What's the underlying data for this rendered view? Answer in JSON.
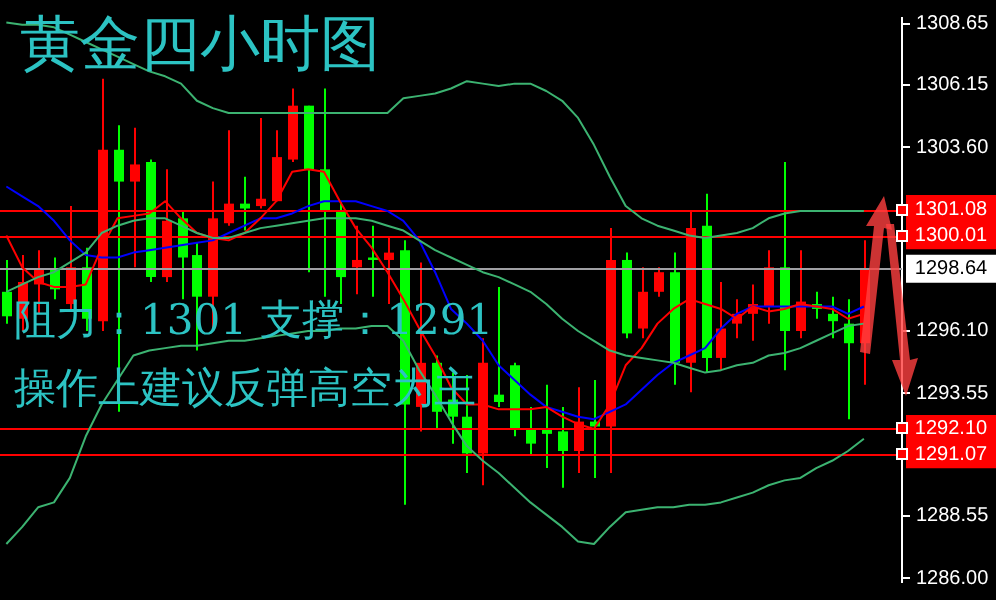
{
  "chart_data": {
    "type": "candlestick",
    "title": "黄金四小时图",
    "annotations": [
      "阻力：1301 支撑：1291",
      "操作上建议反弹高空为主"
    ],
    "categories": [
      null,
      null,
      null,
      null,
      null,
      null,
      null,
      null,
      null,
      null,
      null,
      null,
      null,
      null,
      null,
      null,
      null,
      null,
      null,
      null,
      null,
      null,
      null,
      null,
      null,
      null,
      null,
      null,
      null,
      null,
      null,
      null,
      null,
      null,
      null,
      null,
      null,
      null,
      null,
      null,
      null,
      null,
      null,
      null,
      null,
      null,
      null,
      null,
      null,
      null,
      null,
      null,
      null,
      null,
      null
    ],
    "ohlc": [
      [
        1297.7,
        1299.0,
        1296.4,
        1296.7
      ],
      [
        1296.6,
        1299.2,
        1296.1,
        1298.1
      ],
      [
        1298.0,
        1299.4,
        1296.8,
        1298.6
      ],
      [
        1298.6,
        1299.1,
        1297.4,
        1297.8
      ],
      [
        1297.2,
        1301.2,
        1297.0,
        1298.7
      ],
      [
        1298.7,
        1299.5,
        1296.1,
        1296.6
      ],
      [
        1296.5,
        1306.4,
        1296.1,
        1303.5
      ],
      [
        1303.5,
        1304.5,
        1292.8,
        1302.2
      ],
      [
        1302.2,
        1304.4,
        1298.7,
        1302.9
      ],
      [
        1303.0,
        1303.1,
        1298.1,
        1298.3
      ],
      [
        1298.3,
        1302.7,
        1298.1,
        1300.6
      ],
      [
        1300.7,
        1301.0,
        1297.4,
        1299.1
      ],
      [
        1299.2,
        1299.7,
        1295.3,
        1297.5
      ],
      [
        1297.5,
        1302.2,
        1296.2,
        1300.7
      ],
      [
        1300.5,
        1304.3,
        1300.4,
        1301.3
      ],
      [
        1301.3,
        1302.4,
        1300.2,
        1301.1
      ],
      [
        1301.2,
        1304.8,
        1301.1,
        1301.5
      ],
      [
        1301.4,
        1304.3,
        1301.4,
        1303.2
      ],
      [
        1303.1,
        1306.0,
        1303.0,
        1305.3
      ],
      [
        1305.3,
        1305.3,
        1298.5,
        1302.7
      ],
      [
        1302.7,
        1306.0,
        1297.5,
        1301.0
      ],
      [
        1301.0,
        1301.4,
        1297.2,
        1298.3
      ],
      [
        1298.7,
        1300.4,
        1297.6,
        1299.0
      ],
      [
        1299.1,
        1300.4,
        1297.5,
        1299.0
      ],
      [
        1299.0,
        1299.9,
        1297.2,
        1299.3
      ],
      [
        1299.4,
        1299.8,
        1289.0,
        1293.1
      ],
      [
        1293.0,
        1298.9,
        1292.0,
        1294.8
      ],
      [
        1294.8,
        1295.1,
        1292.1,
        1292.8
      ],
      [
        1293.3,
        1294.4,
        1291.5,
        1292.6
      ],
      [
        1292.6,
        1294.3,
        1290.3,
        1291.1
      ],
      [
        1291.1,
        1295.8,
        1289.8,
        1294.8
      ],
      [
        1293.5,
        1297.9,
        1293.0,
        1293.2
      ],
      [
        1294.7,
        1294.8,
        1291.8,
        1292.1
      ],
      [
        1292.1,
        1293.0,
        1291.0,
        1291.5
      ],
      [
        1292.1,
        1293.9,
        1290.5,
        1291.9
      ],
      [
        1292.0,
        1293.0,
        1289.7,
        1291.2
      ],
      [
        1291.2,
        1293.8,
        1290.3,
        1292.4
      ],
      [
        1292.4,
        1294.1,
        1290.1,
        1292.2
      ],
      [
        1292.2,
        1300.3,
        1290.3,
        1299.0
      ],
      [
        1299.0,
        1299.3,
        1295.8,
        1296.0
      ],
      [
        1296.2,
        1298.7,
        1295.8,
        1297.7
      ],
      [
        1297.7,
        1298.7,
        1297.5,
        1298.5
      ],
      [
        1298.5,
        1299.3,
        1293.9,
        1294.8
      ],
      [
        1294.8,
        1301.0,
        1293.6,
        1300.3
      ],
      [
        1300.4,
        1301.7,
        1294.4,
        1295.0
      ],
      [
        1295.0,
        1298.1,
        1294.5,
        1296.2
      ],
      [
        1296.4,
        1297.4,
        1295.8,
        1296.8
      ],
      [
        1296.8,
        1298.0,
        1295.7,
        1297.2
      ],
      [
        1297.1,
        1299.4,
        1296.4,
        1298.7
      ],
      [
        1298.7,
        1303.0,
        1294.5,
        1296.1
      ],
      [
        1296.1,
        1299.4,
        1295.8,
        1297.3
      ],
      [
        1297.2,
        1297.7,
        1296.6,
        1297.0
      ],
      [
        1296.8,
        1297.5,
        1295.8,
        1296.5
      ],
      [
        1296.4,
        1297.4,
        1292.5,
        1295.6
      ],
      [
        1295.6,
        1299.8,
        1293.9,
        1298.6
      ]
    ],
    "colors": [
      "#00ff00",
      "#ff0000",
      "#ff0000",
      "#00ff00",
      "#ff0000",
      "#00ff00",
      "#ff0000",
      "#00ff00",
      "#ff0000",
      "#00ff00",
      "#ff0000",
      "#00ff00",
      "#00ff00",
      "#ff0000",
      "#ff0000",
      "#00ff00",
      "#ff0000",
      "#ff0000",
      "#ff0000",
      "#00ff00",
      "#00ff00",
      "#00ff00",
      "#ff0000",
      "#00ff00",
      "#ff0000",
      "#00ff00",
      "#ff0000",
      "#00ff00",
      "#00ff00",
      "#00ff00",
      "#ff0000",
      "#00ff00",
      "#00ff00",
      "#00ff00",
      "#00ff00",
      "#00ff00",
      "#ff0000",
      "#00ff00",
      "#ff0000",
      "#00ff00",
      "#ff0000",
      "#ff0000",
      "#00ff00",
      "#ff0000",
      "#00ff00",
      "#ff0000",
      "#ff0000",
      "#ff0000",
      "#ff0000",
      "#00ff00",
      "#ff0000",
      "#00ff00",
      "#00ff00",
      "#00ff00",
      "#ff0000"
    ],
    "series": [
      {
        "type": "line",
        "color": "#3cb371",
        "values": [
          1308.7,
          1308.6,
          1308.6,
          1308.5,
          1308.2,
          1307.9,
          1307.6,
          1307.3,
          1307.0,
          1306.7,
          1306.5,
          1306.2,
          1305.5,
          1305.2,
          1305.0,
          1305.0,
          1305.0,
          1305.0,
          1305.0,
          1305.0,
          1305.0,
          1305.0,
          1305.0,
          1305.0,
          1305.0,
          1305.6,
          1305.7,
          1305.8,
          1306.0,
          1306.3,
          1306.2,
          1306.1,
          1306.2,
          1306.2,
          1305.9,
          1305.5,
          1304.8,
          1303.7,
          1302.4,
          1301.2,
          1300.7,
          1300.4,
          1300.2,
          1300.0,
          1299.9,
          1300.0,
          1300.1,
          1300.3,
          1300.7,
          1300.9,
          1301.0,
          1301.0,
          1301.0,
          1301.0,
          1301.0
        ]
      },
      {
        "type": "line",
        "color": "#3cb371",
        "values": [
          1297.7,
          1298.0,
          1298.3,
          1298.5,
          1298.9,
          1299.3,
          1300.1,
          1300.4,
          1300.6,
          1300.7,
          1300.7,
          1300.4,
          1300.1,
          1299.9,
          1299.9,
          1300.1,
          1300.3,
          1300.4,
          1300.5,
          1300.6,
          1300.7,
          1300.7,
          1300.7,
          1300.6,
          1300.4,
          1300.2,
          1299.8,
          1299.4,
          1299.1,
          1298.8,
          1298.5,
          1298.3,
          1298.0,
          1297.7,
          1297.2,
          1296.6,
          1296.1,
          1295.7,
          1295.3,
          1295.1,
          1295.0,
          1294.9,
          1294.8,
          1294.6,
          1294.4,
          1294.5,
          1294.7,
          1294.8,
          1295.1,
          1295.2,
          1295.4,
          1295.7,
          1296.0,
          1296.3,
          1296.4
        ]
      },
      {
        "type": "line",
        "color": "#3cb371",
        "values": [
          1287.4,
          1288.1,
          1288.9,
          1289.1,
          1290.1,
          1291.8,
          1293.1,
          1294.1,
          1295.1,
          1295.3,
          1295.4,
          1295.5,
          1295.5,
          1295.6,
          1295.7,
          1295.7,
          1295.8,
          1295.9,
          1296.0,
          1296.1,
          1296.1,
          1296.2,
          1296.2,
          1296.3,
          1296.3,
          1295.7,
          1294.5,
          1293.5,
          1292.4,
          1291.4,
          1290.8,
          1290.3,
          1289.7,
          1289.1,
          1288.6,
          1288.1,
          1287.5,
          1287.4,
          1288.1,
          1288.7,
          1288.8,
          1288.9,
          1288.9,
          1289.0,
          1289.0,
          1289.1,
          1289.3,
          1289.5,
          1289.8,
          1290.0,
          1290.1,
          1290.5,
          1290.8,
          1291.2,
          1291.7
        ]
      },
      {
        "type": "line",
        "color": "#ff0000",
        "values": [
          1300.0,
          1298.7,
          1298.1,
          1297.9,
          1297.9,
          1298.0,
          1299.5,
          1300.7,
          1300.8,
          1300.9,
          1301.4,
          1300.7,
          1300.1,
          1299.9,
          1299.8,
          1300.1,
          1300.7,
          1301.4,
          1302.6,
          1302.7,
          1302.6,
          1301.4,
          1300.3,
          1299.5,
          1298.5,
          1297.4,
          1296.2,
          1295.1,
          1293.8,
          1293.1,
          1293.1,
          1292.9,
          1292.9,
          1292.9,
          1293.0,
          1292.6,
          1292.3,
          1292.1,
          1293.1,
          1294.7,
          1295.4,
          1296.4,
          1297.0,
          1297.4,
          1297.2,
          1297.0,
          1296.6,
          1297.1,
          1296.9,
          1297.0,
          1297.2,
          1297.1,
          1297.0,
          1296.6,
          1296.8
        ]
      },
      {
        "type": "line",
        "color": "#0000ff",
        "values": [
          1302.0,
          1301.6,
          1301.2,
          1300.6,
          1299.8,
          1299.2,
          1299.1,
          1299.1,
          1299.3,
          1299.4,
          1299.5,
          1299.6,
          1299.7,
          1299.8,
          1300.1,
          1300.4,
          1300.7,
          1300.7,
          1300.9,
          1301.2,
          1301.4,
          1301.4,
          1301.4,
          1301.2,
          1301.0,
          1300.6,
          1299.8,
          1298.5,
          1297.0,
          1296.4,
          1295.7,
          1294.7,
          1294.1,
          1293.5,
          1293.0,
          1292.8,
          1292.6,
          1292.5,
          1292.8,
          1293.1,
          1293.7,
          1294.3,
          1294.8,
          1295.1,
          1295.4,
          1296.2,
          1296.8,
          1297.1,
          1297.1,
          1297.1,
          1297.1,
          1297.1,
          1297.1,
          1296.8,
          1297.1
        ]
      }
    ],
    "ylim": [
      1285.85,
      1308.88
    ],
    "yticks": [
      {
        "value": 1308.65,
        "label": "1308.65"
      },
      {
        "value": 1306.15,
        "label": "1306.15"
      },
      {
        "value": 1303.6,
        "label": "1303.60"
      },
      {
        "value": 1296.1,
        "label": "1296.10"
      },
      {
        "value": 1293.55,
        "label": "1293.55"
      },
      {
        "value": 1288.55,
        "label": "1288.55"
      },
      {
        "value": 1286.0,
        "label": "1286.00"
      }
    ],
    "ref_lines": [
      {
        "axis": "y",
        "value": 1301.08,
        "label": "1301.08",
        "color": "#ff0000"
      },
      {
        "axis": "y",
        "value": 1300.01,
        "label": "1300.01",
        "color": "#ff0000"
      },
      {
        "axis": "y",
        "value": 1298.64,
        "label": "1298.64",
        "color": "#a0a0a4"
      },
      {
        "axis": "y",
        "value": 1292.1,
        "label": "1292.10",
        "color": "#ff0000"
      },
      {
        "axis": "y",
        "value": 1291.07,
        "label": "1291.07",
        "color": "#ff0000"
      }
    ],
    "tick_labels": "y",
    "grid": false,
    "legend": false
  }
}
